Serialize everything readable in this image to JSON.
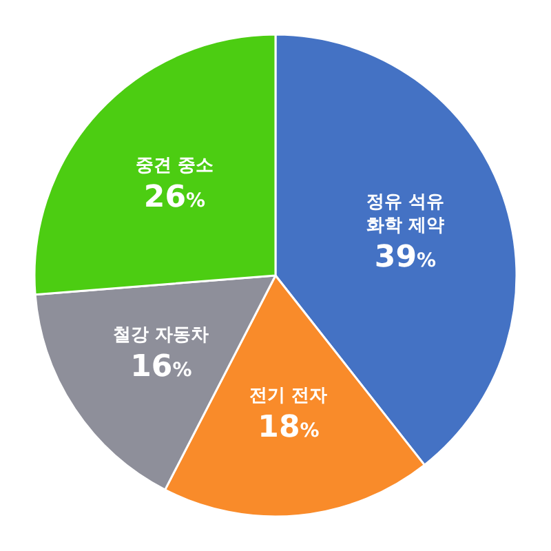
{
  "chart_data": {
    "type": "pie",
    "categories": [
      "정유 석유 화학 제약",
      "전기 전자",
      "철강 자동차",
      "중견 중소"
    ],
    "values": [
      39,
      18,
      16,
      26
    ],
    "value_labels": [
      "39%",
      "18%",
      "16%",
      "26%"
    ],
    "colors": [
      "#4472c4",
      "#f98b2a",
      "#8e8f9a",
      "#4ccd12"
    ]
  }
}
